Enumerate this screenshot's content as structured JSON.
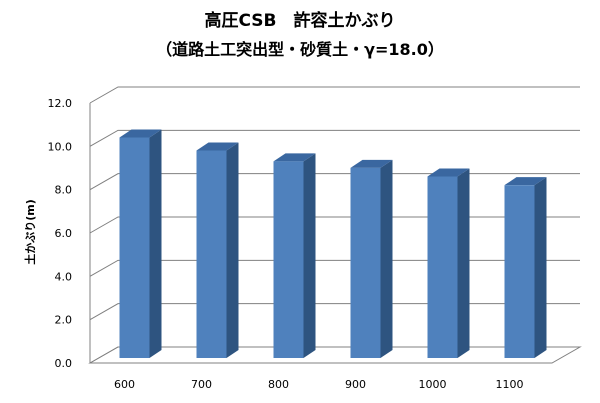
{
  "chart_data": {
    "type": "bar",
    "title": "高圧CSB　許容土かぶり",
    "subtitle": "（道路土工突出型・砂質土・γ=18.0）",
    "xlabel": "",
    "ylabel": "土かぶり(m)",
    "categories": [
      "600",
      "700",
      "800",
      "900",
      "1000",
      "1100"
    ],
    "values": [
      10.5,
      9.9,
      9.4,
      9.1,
      8.7,
      8.3
    ],
    "ylim": [
      0,
      12
    ],
    "yticks": [
      "0.0",
      "2.0",
      "4.0",
      "6.0",
      "8.0",
      "10.0",
      "12.0"
    ],
    "grid": true,
    "legend": "none",
    "colors": {
      "bar_front": "#4F81BD",
      "bar_side": "#2E5480",
      "bar_top": "#3A67A0",
      "grid": "#808080"
    }
  }
}
